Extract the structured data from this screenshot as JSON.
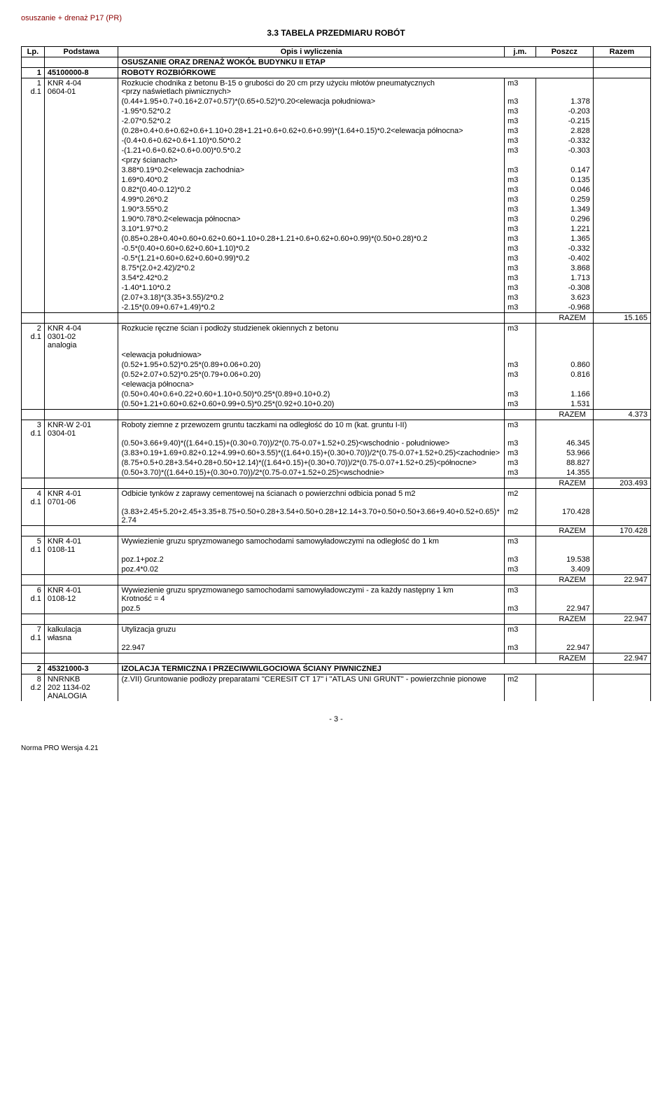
{
  "header_top": "osuszanie + drenaż P17  (PR)",
  "title": "3.3 TABELA  PRZEDMIARU  ROBÓT",
  "cols": {
    "lp": "Lp.",
    "base": "Podstawa",
    "desc": "Opis i wyliczenia",
    "jm": "j.m.",
    "poszcz": "Poszcz",
    "razem": "Razem"
  },
  "sections": [
    {
      "type": "section",
      "text": "OSUSZANIE ORAZ DRENAŻ WOKÓŁ BUDYNKU II ETAP"
    },
    {
      "type": "section",
      "lp": "1",
      "base": "45100000-8",
      "desc": "ROBOTY ROZBIÓRKOWE"
    },
    {
      "type": "item",
      "lp": "1",
      "sub": "d.1",
      "base": "KNR 4-04\n0604-01",
      "desc": "Rozkucie chodnika z betonu B-15 o grubości do 20 cm przy użyciu młotów pneumatycznych\n<przy naświetlach piwnicznych>",
      "jm": "m3",
      "lines": [
        {
          "d": "(0.44+1.95+0.7+0.16+2.07+0.57)*(0.65+0.52)*0.20<elewacja południowa>",
          "jm": "m3",
          "v": "1.378"
        },
        {
          "d": "-1.95*0.52*0.2",
          "jm": "m3",
          "v": "-0.203"
        },
        {
          "d": "-2.07*0.52*0.2",
          "jm": "m3",
          "v": "-0.215"
        },
        {
          "d": "(0.28+0.4+0.6+0.62+0.6+1.10+0.28+1.21+0.6+0.62+0.6+0.99)*(1.64+0.15)*0.2<elewacja północna>",
          "jm": "m3",
          "v": "2.828"
        },
        {
          "d": "-(0.4+0.6+0.62+0.6+1.10)*0.50*0.2",
          "jm": "m3",
          "v": "-0.332"
        },
        {
          "d": "-(1.21+0.6+0.62+0.6+0.00)*0.5*0.2",
          "jm": "m3",
          "v": "-0.303"
        },
        {
          "d": "<przy ścianach>",
          "jm": "",
          "v": ""
        },
        {
          "d": "3.88*0.19*0.2<elewacja zachodnia>",
          "jm": "m3",
          "v": "0.147"
        },
        {
          "d": "1.69*0.40*0.2",
          "jm": "m3",
          "v": "0.135"
        },
        {
          "d": "0.82*(0.40-0.12)*0.2",
          "jm": "m3",
          "v": "0.046"
        },
        {
          "d": "4.99*0.26*0.2",
          "jm": "m3",
          "v": "0.259"
        },
        {
          "d": "1.90*3.55*0.2",
          "jm": "m3",
          "v": "1.349"
        },
        {
          "d": "1.90*0.78*0.2<elewacja północna>",
          "jm": "m3",
          "v": "0.296"
        },
        {
          "d": "3.10*1.97*0.2",
          "jm": "m3",
          "v": "1.221"
        },
        {
          "d": "(0.85+0.28+0.40+0.60+0.62+0.60+1.10+0.28+1.21+0.6+0.62+0.60+0.99)*(0.50+0.28)*0.2",
          "jm": "m3",
          "v": "1.365"
        },
        {
          "d": "-0.5*(0.40+0.60+0.62+0.60+1.10)*0.2",
          "jm": "m3",
          "v": "-0.332"
        },
        {
          "d": "-0.5*(1.21+0.60+0.62+0.60+0.99)*0.2",
          "jm": "m3",
          "v": "-0.402"
        },
        {
          "d": "8.75*(2.0+2.42)/2*0.2",
          "jm": "m3",
          "v": "3.868"
        },
        {
          "d": "3.54*2.42*0.2",
          "jm": "m3",
          "v": "1.713"
        },
        {
          "d": "-1.40*1.10*0.2",
          "jm": "m3",
          "v": "-0.308"
        },
        {
          "d": "(2.07+3.18)*(3.35+3.55)/2*0.2",
          "jm": "m3",
          "v": "3.623"
        },
        {
          "d": "-2.15*(0.09+0.67+1.49)*0.2",
          "jm": "m3",
          "v": "-0.968"
        }
      ],
      "razem": "15.165"
    },
    {
      "type": "item",
      "lp": "2",
      "sub": "d.1",
      "base": "KNR 4-04\n0301-02\nanalogia",
      "desc": "Rozkucie ręczne ścian i podłoży studzienek okiennych z betonu",
      "jm": "m3",
      "lines": [
        {
          "d": "<elewacja południowa>",
          "jm": "",
          "v": ""
        },
        {
          "d": "(0.52+1.95+0.52)*0.25*(0.89+0.06+0.20)",
          "jm": "m3",
          "v": "0.860"
        },
        {
          "d": "(0.52+2.07+0.52)*0.25*(0.79+0.06+0.20)",
          "jm": "m3",
          "v": "0.816"
        },
        {
          "d": "<elewacja północna>",
          "jm": "",
          "v": ""
        },
        {
          "d": "(0.50+0.40+0.6+0.22+0.60+1.10+0.50)*0.25*(0.89+0.10+0.2)",
          "jm": "m3",
          "v": "1.166"
        },
        {
          "d": "(0.50+1.21+0.60+0.62+0.60+0.99+0.5)*0.25*(0.92+0.10+0.20)",
          "jm": "m3",
          "v": "1.531"
        }
      ],
      "razem": "4.373"
    },
    {
      "type": "item",
      "lp": "3",
      "sub": "d.1",
      "base": "KNR-W 2-01\n0304-01",
      "desc": "Roboty ziemne z przewozem gruntu taczkami na odległość do 10 m (kat. gruntu I-II)",
      "jm": "m3",
      "lines": [
        {
          "d": "(0.50+3.66+9.40)*((1.64+0.15)+(0.30+0.70))/2*(0.75-0.07+1.52+0.25)<wschodnio - południowe>",
          "jm": "m3",
          "v": "46.345"
        },
        {
          "d": "(3.83+0.19+1.69+0.82+0.12+4.99+0.60+3.55)*((1.64+0.15)+(0.30+0.70))/2*(0.75-0.07+1.52+0.25)<zachodnie>",
          "jm": "m3",
          "v": "53.966"
        },
        {
          "d": "(8.75+0.5+0.28+3.54+0.28+0.50+12.14)*((1.64+0.15)+(0.30+0.70))/2*(0.75-0.07+1.52+0.25)<północne>",
          "jm": "m3",
          "v": "88.827"
        },
        {
          "d": "(0.50+3.70)*((1.64+0.15)+(0.30+0.70))/2*(0.75-0.07+1.52+0.25)<wschodnie>",
          "jm": "m3",
          "v": "14.355"
        }
      ],
      "razem": "203.493"
    },
    {
      "type": "item",
      "lp": "4",
      "sub": "d.1",
      "base": "KNR 4-01\n0701-06",
      "desc": "Odbicie tynków z zaprawy cementowej na ścianach o powierzchni odbicia ponad 5 m2",
      "jm": "m2",
      "lines": [
        {
          "d": "(3.83+2.45+5.20+2.45+3.35+8.75+0.50+0.28+3.54+0.50+0.28+12.14+3.70+0.50+0.50+3.66+9.40+0.52+0.65)*2.74",
          "jm": "m2",
          "v": "170.428"
        }
      ],
      "razem": "170.428"
    },
    {
      "type": "item",
      "lp": "5",
      "sub": "d.1",
      "base": "KNR 4-01\n0108-11",
      "desc": "Wywiezienie gruzu spryzmowanego samochodami samowyładowczymi na odległość do 1 km",
      "jm": "m3",
      "lines": [
        {
          "d": "poz.1+poz.2",
          "jm": "m3",
          "v": "19.538"
        },
        {
          "d": "poz.4*0.02",
          "jm": "m3",
          "v": "3.409"
        }
      ],
      "razem": "22.947"
    },
    {
      "type": "item",
      "lp": "6",
      "sub": "d.1",
      "base": "KNR 4-01\n0108-12",
      "desc": "Wywiezienie gruzu spryzmowanego samochodami samowyładowczymi - za każdy następny 1 km\nKrotność = 4",
      "jm": "m3",
      "lines": [
        {
          "d": "poz.5",
          "jm": "m3",
          "v": "22.947"
        }
      ],
      "razem": "22.947"
    },
    {
      "type": "item",
      "lp": "7",
      "sub": "d.1",
      "base": "kalkulacja\nwłasna",
      "desc": "Utylizacja gruzu",
      "jm": "m3",
      "lines": [
        {
          "d": "22.947",
          "jm": "m3",
          "v": "22.947"
        }
      ],
      "razem": "22.947"
    },
    {
      "type": "section",
      "lp": "2",
      "base": "45321000-3",
      "desc": "IZOLACJA TERMICZNA I PRZECIWWILGOCIOWA ŚCIANY PIWNICZNEJ"
    },
    {
      "type": "item",
      "lp": "8",
      "sub": "d.2",
      "base": "NNRNKB\n202 1134-02\nANALOGIA",
      "desc": "(z.VII) Gruntowanie podłoży preparatami \"CERESIT CT 17\" i \"ATLAS UNI GRUNT\" - powierzchnie pionowe",
      "jm": "m2",
      "lines": [],
      "razem": null
    }
  ],
  "razem_label": "RAZEM",
  "page_num": "- 3 -",
  "footer": "Norma PRO Wersja 4.21"
}
